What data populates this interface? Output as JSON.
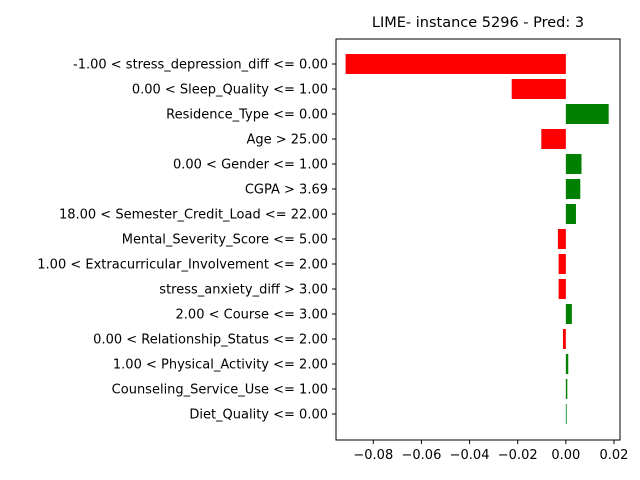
{
  "chart_data": {
    "type": "bar",
    "orientation": "horizontal",
    "title": "LIME- instance 5296 - Pred: 3",
    "xlabel": "",
    "ylabel": "",
    "xlim": [
      -0.0955,
      0.0225
    ],
    "xticks": [
      -0.08,
      -0.06,
      -0.04,
      -0.02,
      0.0,
      0.02
    ],
    "xtick_labels": [
      "−0.08",
      "−0.06",
      "−0.04",
      "−0.02",
      "0.00",
      "0.02"
    ],
    "grid": false,
    "positive_color": "#008000",
    "negative_color": "#ff0000",
    "categories": [
      "-1.00 < stress_depression_diff <= 0.00",
      "0.00 < Sleep_Quality <= 1.00",
      "Residence_Type <= 0.00",
      "Age > 25.00",
      "0.00 < Gender <= 1.00",
      "CGPA > 3.69",
      "18.00 < Semester_Credit_Load <= 22.00",
      "Mental_Severity_Score <= 5.00",
      "1.00 < Extracurricular_Involvement <= 2.00",
      "stress_anxiety_diff > 3.00",
      "2.00 < Course <= 3.00",
      "0.00 < Relationship_Status <= 2.00",
      "1.00 < Physical_Activity <= 2.00",
      "Counseling_Service_Use <= 1.00",
      "Diet_Quality <= 0.00"
    ],
    "values": [
      -0.0915,
      -0.0225,
      0.0178,
      -0.0102,
      0.0065,
      0.006,
      0.0042,
      -0.0033,
      -0.003,
      -0.003,
      0.0025,
      -0.0012,
      0.001,
      0.0006,
      0.0001
    ]
  }
}
